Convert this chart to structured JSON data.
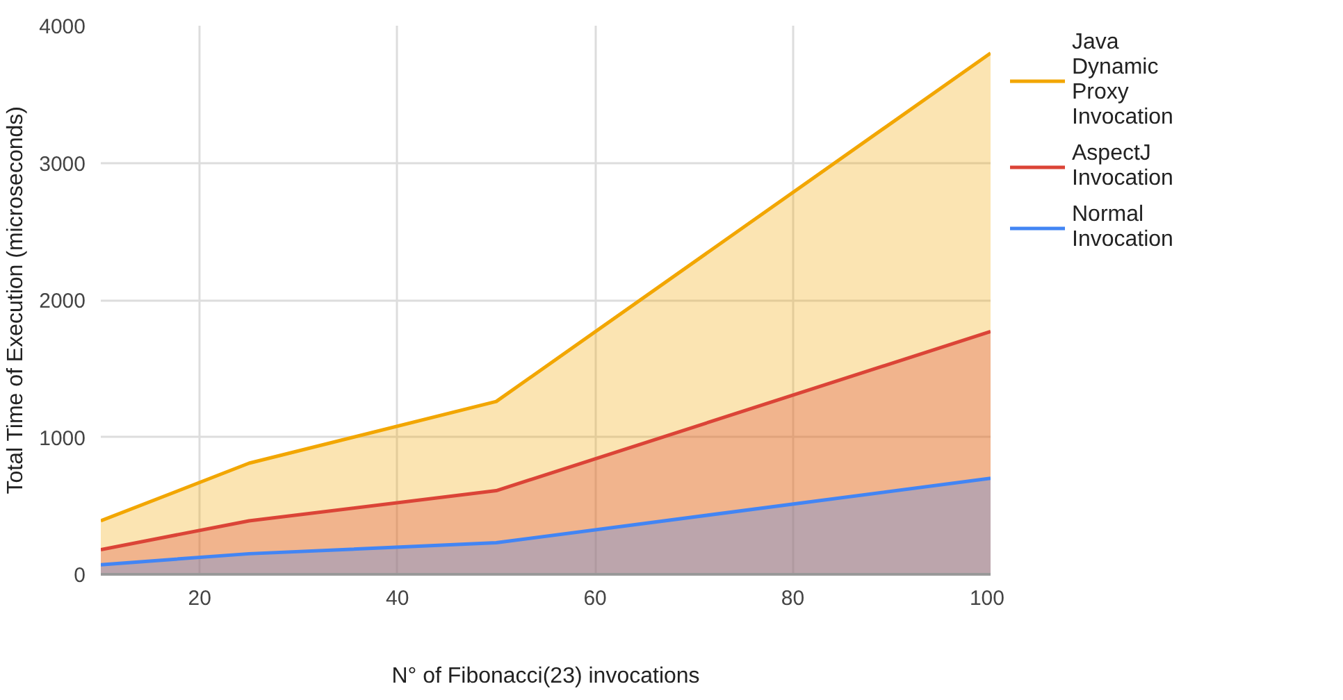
{
  "chart_data": {
    "type": "area",
    "xlabel": "N° of Fibonacci(23) invocations",
    "ylabel": "Total Time of Execution (microseconds)",
    "x": [
      10,
      25,
      50,
      100
    ],
    "series": [
      {
        "name": "Java Dynamic Proxy Invocation",
        "color": "#f2a600",
        "values": [
          390,
          810,
          1260,
          3800
        ]
      },
      {
        "name": "AspectJ Invocation",
        "color": "#db4437",
        "values": [
          180,
          390,
          610,
          1770
        ]
      },
      {
        "name": "Normal Invocation",
        "color": "#4285f4",
        "values": [
          70,
          150,
          230,
          700
        ]
      }
    ],
    "xlim": [
      10,
      100
    ],
    "xticks": [
      20,
      40,
      60,
      80,
      100
    ],
    "ylim": [
      0,
      4000
    ],
    "yticks": [
      0,
      1000,
      2000,
      3000,
      4000
    ],
    "grid": true,
    "legend": "right"
  }
}
